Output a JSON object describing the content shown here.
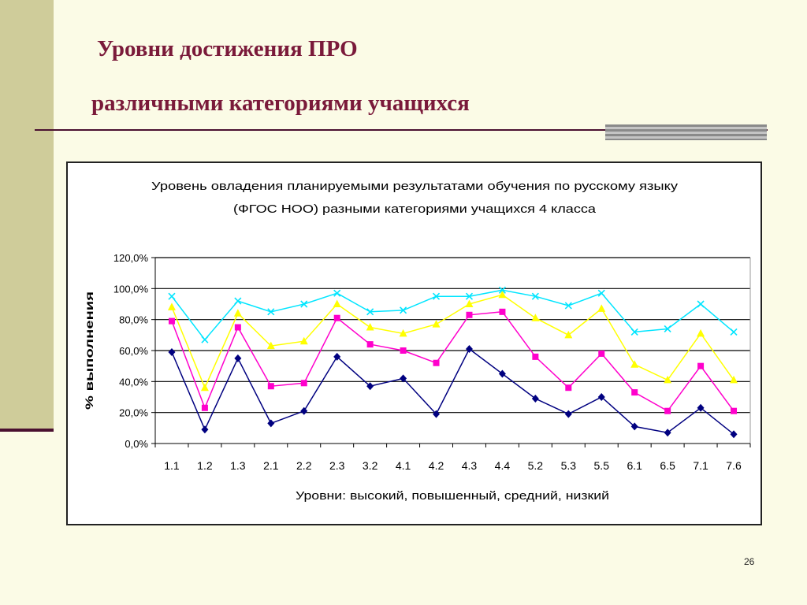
{
  "slide": {
    "title_line1": "Уровни достижения ПРО",
    "title_line2": "различными категориями учащихся",
    "page_number": "26"
  },
  "colors": {
    "series": [
      "#000080",
      "#ff00cc",
      "#ffff00",
      "#00e5ff"
    ]
  },
  "chart_data": {
    "type": "line",
    "title": "Уровень овладения планируемыми результатами обучения  по русскому языку",
    "subtitle": "(ФГОС НОО)  разными категориями учащихся 4 класса",
    "xlabel": "Уровни: высокий, повышенный, средний, низкий",
    "ylabel": "% выполнения",
    "ylim": [
      0,
      120
    ],
    "yticks": [
      0,
      20,
      40,
      60,
      80,
      100,
      120
    ],
    "yticklabels": [
      "0,0%",
      "20,0%",
      "40,0%",
      "60,0%",
      "80,0%",
      "100,0%",
      "120,0%"
    ],
    "grid": true,
    "legend": "none",
    "categories": [
      "1.1",
      "1.2",
      "1.3",
      "2.1",
      "2.2",
      "2.3",
      "3.2",
      "4.1",
      "4.2",
      "4.3",
      "4.4",
      "5.2",
      "5.3",
      "5.5",
      "6.1",
      "6.5",
      "7.1",
      "7.6"
    ],
    "series": [
      {
        "marker": "diamond",
        "values": [
          59,
          9,
          55,
          13,
          21,
          56,
          37,
          42,
          19,
          61,
          45,
          29,
          19,
          30,
          11,
          7,
          23,
          6
        ]
      },
      {
        "marker": "square",
        "values": [
          79,
          23,
          75,
          37,
          39,
          81,
          64,
          60,
          52,
          83,
          85,
          56,
          36,
          58,
          33,
          21,
          50,
          21
        ]
      },
      {
        "marker": "triangle",
        "values": [
          88,
          36,
          84,
          63,
          66,
          90,
          75,
          71,
          77,
          90,
          96,
          81,
          70,
          87,
          51,
          41,
          71,
          41
        ]
      },
      {
        "marker": "x",
        "values": [
          95,
          67,
          92,
          85,
          90,
          97,
          85,
          86,
          95,
          95,
          99,
          95,
          89,
          97,
          72,
          74,
          90,
          72
        ]
      }
    ]
  }
}
